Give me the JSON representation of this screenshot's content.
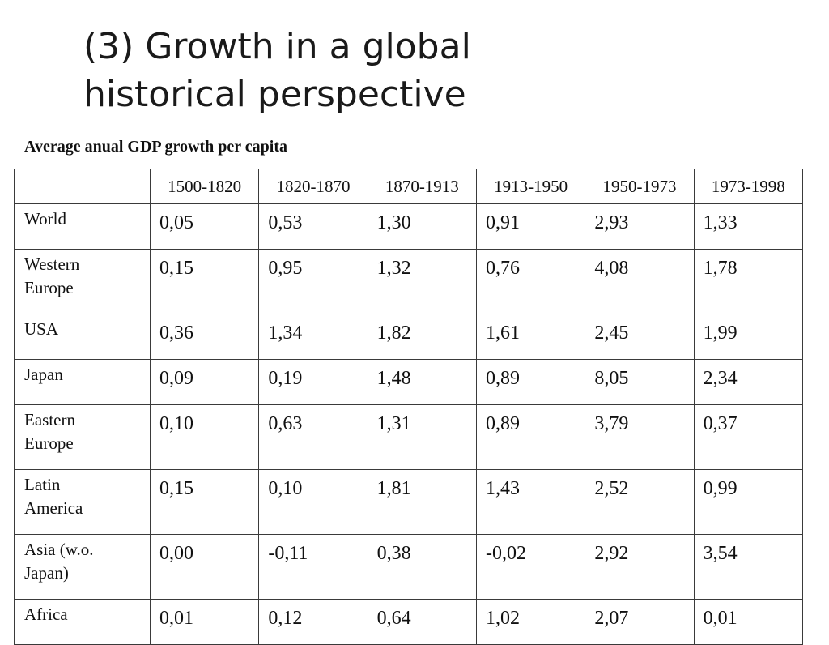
{
  "slide": {
    "title_line1": "(3) Growth in a global",
    "title_line2": "historical perspective"
  },
  "table": {
    "caption": "Average anual GDP growth per capita",
    "columns": [
      "1500-1820",
      "1820-1870",
      "1870-1913",
      "1913-1950",
      "1950-1973",
      "1973-1998"
    ],
    "rows": [
      {
        "region_line1": "World",
        "region_line2": "",
        "values": [
          "0,05",
          "0,53",
          "1,30",
          "0,91",
          "2,93",
          "1,33"
        ]
      },
      {
        "region_line1": "Western",
        "region_line2": "Europe",
        "values": [
          "0,15",
          "0,95",
          "1,32",
          "0,76",
          "4,08",
          "1,78"
        ]
      },
      {
        "region_line1": "USA",
        "region_line2": "",
        "values": [
          "0,36",
          "1,34",
          "1,82",
          "1,61",
          "2,45",
          "1,99"
        ]
      },
      {
        "region_line1": "Japan",
        "region_line2": "",
        "values": [
          "0,09",
          "0,19",
          "1,48",
          "0,89",
          "8,05",
          "2,34"
        ]
      },
      {
        "region_line1": "Eastern",
        "region_line2": "Europe",
        "values": [
          "0,10",
          "0,63",
          "1,31",
          "0,89",
          "3,79",
          "0,37"
        ]
      },
      {
        "region_line1": "Latin",
        "region_line2": "America",
        "values": [
          "0,15",
          "0,10",
          "1,81",
          "1,43",
          "2,52",
          "0,99"
        ]
      },
      {
        "region_line1": "Asia (w.o.",
        "region_line2": "Japan)",
        "values": [
          "0,00",
          "-0,11",
          "0,38",
          "-0,02",
          "2,92",
          "3,54"
        ]
      },
      {
        "region_line1": "Africa",
        "region_line2": "",
        "values": [
          "0,01",
          "0,12",
          "0,64",
          "1,02",
          "2,07",
          "0,01"
        ]
      }
    ]
  }
}
